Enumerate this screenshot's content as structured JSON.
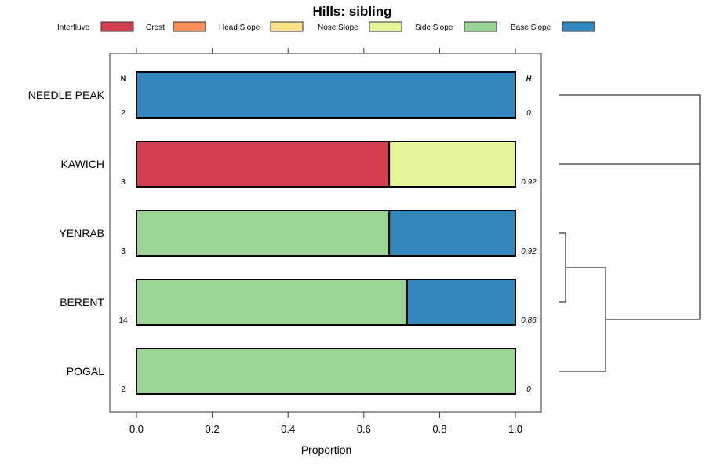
{
  "chart_data": {
    "type": "bar",
    "stacked": true,
    "orientation": "horizontal",
    "title": "Hills: sibling",
    "xlabel": "Proportion",
    "xlim": [
      0,
      1
    ],
    "xticks": [
      "0.0",
      "0.2",
      "0.4",
      "0.6",
      "0.8",
      "1.0"
    ],
    "legend_placement": "top",
    "n_header": "N",
    "h_header": "H",
    "legend": [
      {
        "name": "Interfluve",
        "color": "#D53E4F"
      },
      {
        "name": "Crest",
        "color": "#FC8D59"
      },
      {
        "name": "Head Slope",
        "color": "#FEE08B"
      },
      {
        "name": "Nose Slope",
        "color": "#E6F598"
      },
      {
        "name": "Side Slope",
        "color": "#99D594"
      },
      {
        "name": "Base Slope",
        "color": "#3288BD"
      }
    ],
    "categories": [
      "NEEDLE PEAK",
      "KAWICH",
      "YENRAB",
      "BERENT",
      "POGAL"
    ],
    "n": [
      "2",
      "3",
      "3",
      "14",
      "2"
    ],
    "h": [
      "0",
      "0.92",
      "0.92",
      "0.86",
      "0"
    ],
    "series": [
      {
        "name": "Interfluve",
        "values": [
          0,
          0.667,
          0,
          0,
          0
        ]
      },
      {
        "name": "Crest",
        "values": [
          0,
          0,
          0,
          0,
          0
        ]
      },
      {
        "name": "Head Slope",
        "values": [
          0,
          0,
          0,
          0,
          0
        ]
      },
      {
        "name": "Nose Slope",
        "values": [
          0,
          0.333,
          0,
          0,
          0
        ]
      },
      {
        "name": "Side Slope",
        "values": [
          0,
          0,
          0.667,
          0.714,
          1
        ]
      },
      {
        "name": "Base Slope",
        "values": [
          1,
          0,
          0.333,
          0.286,
          0
        ]
      }
    ]
  }
}
